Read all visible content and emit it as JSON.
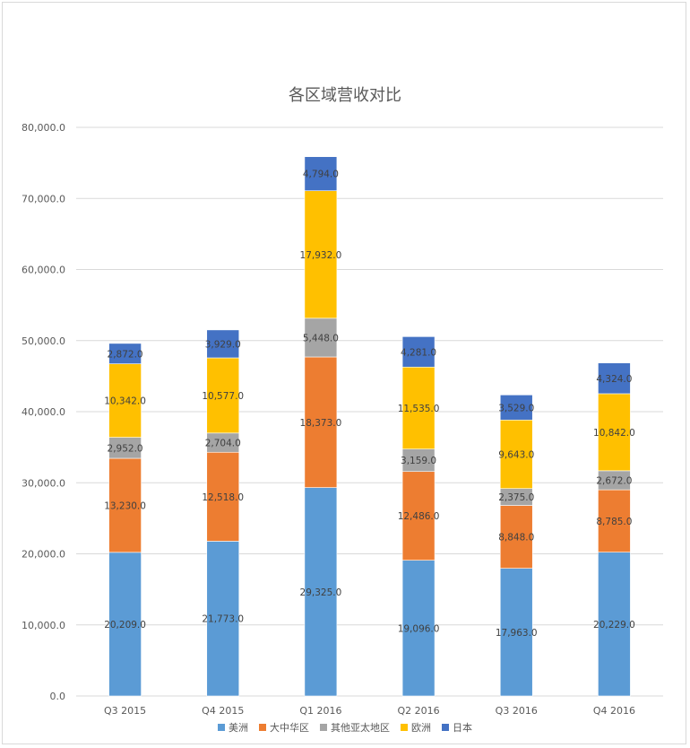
{
  "chart_data": {
    "type": "bar",
    "stacked": true,
    "title": "各区域营收对比",
    "categories": [
      "Q3 2015",
      "Q4 2015",
      "Q1 2016",
      "Q2 2016",
      "Q3 2016",
      "Q4 2016"
    ],
    "ylim": [
      0,
      80000
    ],
    "yticks": [
      "0.0",
      "10,000.0",
      "20,000.0",
      "30,000.0",
      "40,000.0",
      "50,000.0",
      "60,000.0",
      "70,000.0",
      "80,000.0"
    ],
    "grid": true,
    "legend_position": "bottom",
    "series": [
      {
        "name": "美洲",
        "color": "#5B9BD5",
        "values": [
          20209,
          21773,
          29325,
          19096,
          17963,
          20229
        ],
        "labels": [
          "20,209.0",
          "21,773.0",
          "29,325.0",
          "19,096.0",
          "17,963.0",
          "20,229.0"
        ]
      },
      {
        "name": "大中华区",
        "color": "#ED7D31",
        "values": [
          13230,
          12518,
          18373,
          12486,
          8848,
          8785
        ],
        "labels": [
          "13,230.0",
          "12,518.0",
          "18,373.0",
          "12,486.0",
          "8,848.0",
          "8,785.0"
        ]
      },
      {
        "name": "其他亚太地区",
        "color": "#A5A5A5",
        "values": [
          2952,
          2704,
          5448,
          3159,
          2375,
          2672
        ],
        "labels": [
          "2,952.0",
          "2,704.0",
          "5,448.0",
          "3,159.0",
          "2,375.0",
          "2,672.0"
        ]
      },
      {
        "name": "欧洲",
        "color": "#FFC000",
        "values": [
          10342,
          10577,
          17932,
          11535,
          9643,
          10842
        ],
        "labels": [
          "10,342.0",
          "10,577.0",
          "17,932.0",
          "11,535.0",
          "9,643.0",
          "10,842.0"
        ]
      },
      {
        "name": "日本",
        "color": "#4472C4",
        "values": [
          2872,
          3929,
          4794,
          4281,
          3529,
          4324
        ],
        "labels": [
          "2,872.0",
          "3,929.0",
          "4,794.0",
          "4,281.0",
          "3,529.0",
          "4,324.0"
        ]
      }
    ]
  }
}
